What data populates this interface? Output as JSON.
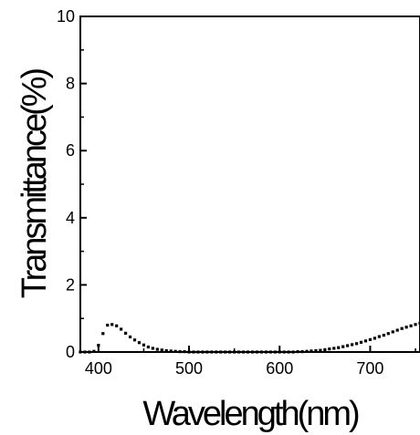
{
  "chart_data": {
    "type": "scatter",
    "xlabel": "Wavelength(nm)",
    "ylabel": "Transmittance(%)",
    "xlim": [
      380,
      755
    ],
    "ylim": [
      0,
      10
    ],
    "x_ticks": [
      400,
      500,
      600,
      700
    ],
    "y_ticks": [
      0,
      2,
      4,
      6,
      8,
      10
    ],
    "grid": false,
    "marker_color": "#000000",
    "series": [
      {
        "x": [
          380,
          385,
          390,
          395,
          400,
          405,
          410,
          415,
          420,
          425,
          430,
          435,
          440,
          445,
          450,
          455,
          460,
          465,
          470,
          475,
          480,
          485,
          490,
          495,
          500,
          505,
          510,
          515,
          520,
          525,
          530,
          535,
          540,
          545,
          550,
          555,
          560,
          565,
          570,
          575,
          580,
          585,
          590,
          595,
          600,
          605,
          610,
          615,
          620,
          625,
          630,
          635,
          640,
          645,
          650,
          655,
          660,
          665,
          670,
          675,
          680,
          685,
          690,
          695,
          700,
          705,
          710,
          715,
          720,
          725,
          730,
          735,
          740,
          745,
          750,
          755
        ],
        "y": [
          0.0,
          0.0,
          0.0,
          0.02,
          0.2,
          0.55,
          0.8,
          0.82,
          0.78,
          0.68,
          0.56,
          0.45,
          0.36,
          0.28,
          0.21,
          0.15,
          0.11,
          0.08,
          0.06,
          0.04,
          0.03,
          0.02,
          0.01,
          0.01,
          0.0,
          0.0,
          0.0,
          0.0,
          0.0,
          0.0,
          0.0,
          0.0,
          0.0,
          0.0,
          0.0,
          0.0,
          0.0,
          0.0,
          0.0,
          0.0,
          0.0,
          0.0,
          0.0,
          0.0,
          0.0,
          0.0,
          0.0,
          0.0,
          0.01,
          0.01,
          0.02,
          0.03,
          0.04,
          0.05,
          0.07,
          0.09,
          0.11,
          0.13,
          0.16,
          0.19,
          0.22,
          0.25,
          0.29,
          0.33,
          0.37,
          0.41,
          0.46,
          0.5,
          0.55,
          0.6,
          0.65,
          0.7,
          0.74,
          0.78,
          0.82,
          0.86
        ]
      }
    ]
  }
}
